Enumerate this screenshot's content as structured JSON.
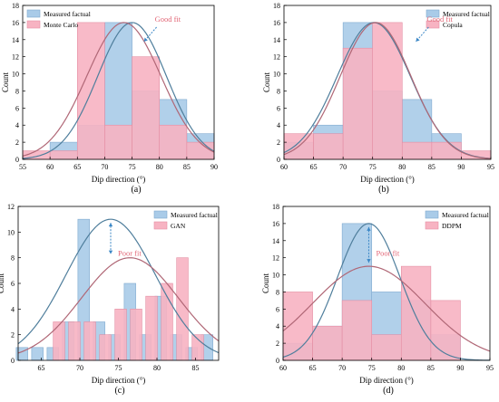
{
  "colors": {
    "measured_fill": "#a9cbe8",
    "measured_stroke": "#7fa9cf",
    "measured_curve": "#4f7e9c",
    "synth_fill": "#f7b3c2",
    "synth_stroke": "#e48ea3",
    "synth_curve": "#b06776",
    "annotation": "#e26777",
    "arrow": "#3b87c6"
  },
  "chart_data": [
    {
      "type": "bar",
      "panel_label": "(a)",
      "xlabel": "Dip direction (°)",
      "ylabel": "Count",
      "xlim": [
        55,
        90
      ],
      "ylim": [
        0,
        18
      ],
      "xticks": [
        "55",
        "60",
        "65",
        "70",
        "75",
        "80",
        "85",
        "90"
      ],
      "yticks": [
        "0",
        "2",
        "4",
        "6",
        "8",
        "10",
        "12",
        "14",
        "16",
        "18"
      ],
      "bin_width": 5,
      "legend": [
        "Measured factual",
        "Monte Carlo"
      ],
      "legend_position": "top-left",
      "annotation": "Good fit",
      "arrow": "diagonal",
      "series": [
        {
          "name": "Measured factual",
          "x": [
            62.5,
            67.5,
            72.5,
            77.5,
            82.5,
            87.5
          ],
          "values": [
            2,
            4,
            16,
            8,
            7,
            3
          ]
        },
        {
          "name": "Monte Carlo",
          "x": [
            57.5,
            62.5,
            67.5,
            72.5,
            77.5,
            82.5,
            87.5
          ],
          "values": [
            1,
            1,
            16,
            4,
            12,
            4,
            2
          ]
        }
      ],
      "curves": [
        {
          "name": "Measured factual",
          "mean": 75,
          "sd": 6.3,
          "peak": 16
        },
        {
          "name": "Monte Carlo",
          "mean": 73.5,
          "sd": 6.8,
          "peak": 16
        }
      ]
    },
    {
      "type": "bar",
      "panel_label": "(b)",
      "xlabel": "Dip direction (°)",
      "ylabel": "Count",
      "xlim": [
        60,
        95
      ],
      "ylim": [
        0,
        18
      ],
      "xticks": [
        "60",
        "65",
        "70",
        "75",
        "80",
        "85",
        "90",
        "95"
      ],
      "yticks": [
        "0",
        "2",
        "4",
        "6",
        "8",
        "10",
        "12",
        "14",
        "16",
        "18"
      ],
      "bin_width": 5,
      "legend": [
        "Measured factual",
        "Copula"
      ],
      "legend_position": "top-right",
      "annotation": "Good fit",
      "arrow": "diagonal",
      "series": [
        {
          "name": "Measured factual",
          "x": [
            62.5,
            67.5,
            72.5,
            77.5,
            82.5,
            87.5
          ],
          "values": [
            2,
            4,
            16,
            8,
            7,
            3
          ]
        },
        {
          "name": "Copula",
          "x": [
            62.5,
            67.5,
            72.5,
            77.5,
            82.5,
            87.5,
            92.5
          ],
          "values": [
            3,
            3,
            13,
            16,
            2,
            2,
            1
          ]
        }
      ],
      "curves": [
        {
          "name": "Measured factual",
          "mean": 75.2,
          "sd": 6.2,
          "peak": 16
        },
        {
          "name": "Copula",
          "mean": 75.5,
          "sd": 6.0,
          "peak": 16
        }
      ]
    },
    {
      "type": "bar",
      "panel_label": "(c)",
      "xlabel": "Dip direction (°)",
      "ylabel": "Count",
      "xlim": [
        62,
        88
      ],
      "ylim": [
        0,
        12
      ],
      "xticks": [
        "65",
        "70",
        "75",
        "80",
        "85"
      ],
      "yticks": [
        "0",
        "2",
        "4",
        "6",
        "8",
        "10",
        "12"
      ],
      "bin_width": 1.5,
      "legend": [
        "Measured factual",
        "GAN"
      ],
      "legend_position": "top-right",
      "annotation": "Poor fit",
      "arrow": "vertical",
      "series": [
        {
          "name": "Measured factual",
          "x": [
            62.5,
            64.5,
            66.5,
            68.5,
            70.5,
            72.5,
            74.5,
            76.5,
            78.5,
            80.5,
            82.5,
            84.5,
            86.5
          ],
          "values": [
            1,
            1,
            1,
            3,
            11,
            3,
            2,
            6,
            2,
            5,
            2,
            1,
            2
          ]
        },
        {
          "name": "GAN",
          "x": [
            67.3,
            69.3,
            71.3,
            73.3,
            75.3,
            77.3,
            79.3,
            81.3,
            83.3,
            85.3
          ],
          "values": [
            3,
            3,
            3,
            2,
            4,
            4,
            5,
            6,
            8,
            2
          ]
        }
      ],
      "curves": [
        {
          "name": "Measured factual",
          "mean": 74,
          "sd": 5.8,
          "peak": 11
        },
        {
          "name": "GAN",
          "mean": 76.5,
          "sd": 6.3,
          "peak": 8
        }
      ]
    },
    {
      "type": "bar",
      "panel_label": "(d)",
      "xlabel": "Dip direction (°)",
      "ylabel": "Count",
      "xlim": [
        60,
        95
      ],
      "ylim": [
        0,
        18
      ],
      "xticks": [
        "60",
        "65",
        "70",
        "75",
        "80",
        "85",
        "90",
        "95"
      ],
      "yticks": [
        "0",
        "2",
        "4",
        "6",
        "8",
        "10",
        "12",
        "14",
        "16",
        "18"
      ],
      "bin_width": 5,
      "legend": [
        "Measured factual",
        "DDPM"
      ],
      "legend_position": "top-right",
      "annotation": "Poor fit",
      "arrow": "vertical",
      "series": [
        {
          "name": "Measured factual",
          "x": [
            62.5,
            67.5,
            72.5,
            77.5,
            82.5,
            87.5
          ],
          "values": [
            2,
            4,
            16,
            8,
            7,
            3
          ]
        },
        {
          "name": "DDPM",
          "x": [
            62.5,
            67.5,
            72.5,
            77.5,
            82.5,
            87.5
          ],
          "values": [
            8,
            4,
            7,
            3,
            11,
            7
          ]
        }
      ],
      "curves": [
        {
          "name": "Measured factual",
          "mean": 74.5,
          "sd": 5.3,
          "peak": 16
        },
        {
          "name": "DDPM",
          "mean": 74.5,
          "sd": 9.5,
          "peak": 11
        }
      ]
    }
  ]
}
